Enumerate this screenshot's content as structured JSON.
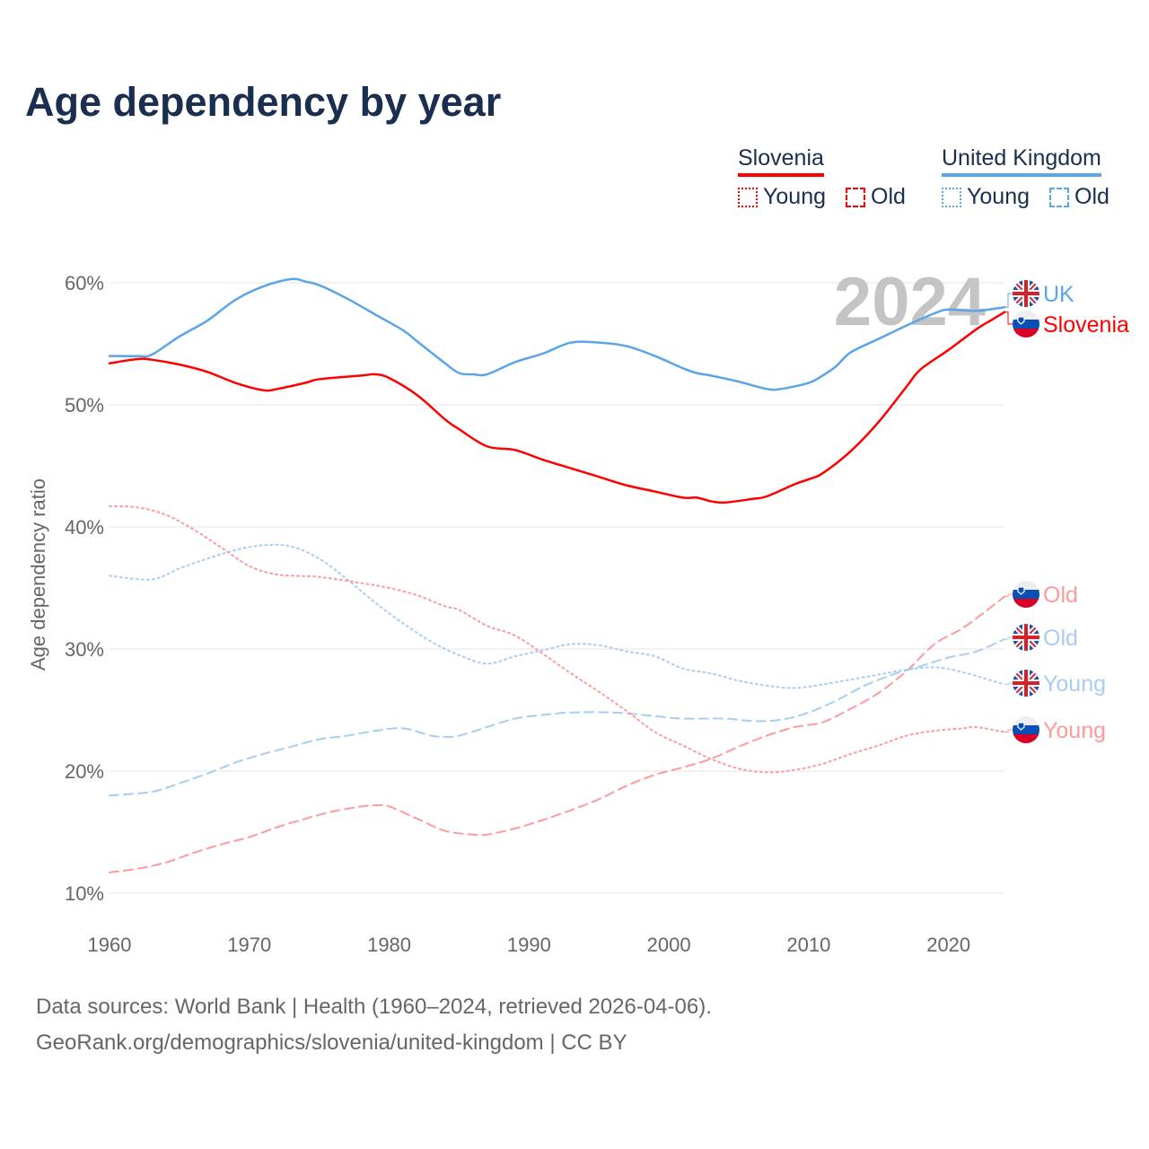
{
  "title": "Age dependency by year",
  "legend": {
    "groups": [
      {
        "name": "Slovenia",
        "color": "#ff0000",
        "items": [
          {
            "label": "Young",
            "style": "dotted"
          },
          {
            "label": "Old",
            "style": "dashed"
          }
        ]
      },
      {
        "name": "United Kingdom",
        "color": "#5aa5e8",
        "items": [
          {
            "label": "Young",
            "style": "dotted"
          },
          {
            "label": "Old",
            "style": "dashed"
          }
        ]
      }
    ]
  },
  "year_watermark": "2024",
  "footer": {
    "line1": "Data sources: World Bank | Health (1960–2024, retrieved 2026-04-06).",
    "line2": "GeoRank.org/demographics/slovenia/united-kingdom | CC BY"
  },
  "chart_data": {
    "type": "line",
    "title": "Age dependency by year",
    "xlabel": "",
    "ylabel": "Age dependency ratio",
    "xlim": [
      1960,
      2024
    ],
    "ylim": [
      10,
      60
    ],
    "x_ticks": [
      "1960",
      "1970",
      "1980",
      "1990",
      "2000",
      "2010",
      "2020"
    ],
    "y_ticks": [
      "10%",
      "20%",
      "30%",
      "40%",
      "50%",
      "60%"
    ],
    "grid": true,
    "series": [
      {
        "name": "UK",
        "country": "United Kingdom",
        "flag": "uk",
        "style": "solid",
        "color": "#5aa5e8",
        "points": [
          [
            1960,
            54.0
          ],
          [
            1962,
            54.0
          ],
          [
            1963,
            54.1
          ],
          [
            1965,
            55.6
          ],
          [
            1967,
            56.9
          ],
          [
            1969,
            58.6
          ],
          [
            1971,
            59.7
          ],
          [
            1973,
            60.3
          ],
          [
            1974,
            60.1
          ],
          [
            1975,
            59.8
          ],
          [
            1977,
            58.7
          ],
          [
            1979,
            57.4
          ],
          [
            1981,
            56.1
          ],
          [
            1982,
            55.2
          ],
          [
            1984,
            53.4
          ],
          [
            1985,
            52.6
          ],
          [
            1986,
            52.5
          ],
          [
            1987,
            52.5
          ],
          [
            1989,
            53.5
          ],
          [
            1991,
            54.2
          ],
          [
            1993,
            55.1
          ],
          [
            1995,
            55.1
          ],
          [
            1997,
            54.8
          ],
          [
            1999,
            54.0
          ],
          [
            2001,
            53.0
          ],
          [
            2002,
            52.6
          ],
          [
            2003,
            52.4
          ],
          [
            2005,
            51.9
          ],
          [
            2007,
            51.3
          ],
          [
            2008,
            51.3
          ],
          [
            2010,
            51.8
          ],
          [
            2011,
            52.4
          ],
          [
            2012,
            53.2
          ],
          [
            2013,
            54.3
          ],
          [
            2015,
            55.4
          ],
          [
            2017,
            56.5
          ],
          [
            2019,
            57.5
          ],
          [
            2020,
            57.8
          ],
          [
            2022,
            57.7
          ],
          [
            2024,
            58.0
          ]
        ]
      },
      {
        "name": "Slovenia",
        "country": "Slovenia",
        "flag": "si",
        "style": "solid",
        "color": "#ff0000",
        "points": [
          [
            1960,
            53.4
          ],
          [
            1962,
            53.75
          ],
          [
            1963,
            53.7
          ],
          [
            1965,
            53.3
          ],
          [
            1967,
            52.7
          ],
          [
            1969,
            51.8
          ],
          [
            1971,
            51.2
          ],
          [
            1972,
            51.3
          ],
          [
            1974,
            51.8
          ],
          [
            1975,
            52.1
          ],
          [
            1978,
            52.4
          ],
          [
            1979,
            52.5
          ],
          [
            1980,
            52.2
          ],
          [
            1982,
            50.8
          ],
          [
            1984,
            48.8
          ],
          [
            1985,
            48.0
          ],
          [
            1987,
            46.6
          ],
          [
            1989,
            46.3
          ],
          [
            1991,
            45.5
          ],
          [
            1993,
            44.8
          ],
          [
            1995,
            44.1
          ],
          [
            1997,
            43.4
          ],
          [
            1999,
            42.9
          ],
          [
            2001,
            42.4
          ],
          [
            2002,
            42.4
          ],
          [
            2003,
            42.1
          ],
          [
            2004,
            42.0
          ],
          [
            2006,
            42.3
          ],
          [
            2007,
            42.5
          ],
          [
            2009,
            43.5
          ],
          [
            2010,
            43.9
          ],
          [
            2011,
            44.4
          ],
          [
            2013,
            46.2
          ],
          [
            2015,
            48.6
          ],
          [
            2017,
            51.5
          ],
          [
            2018,
            52.9
          ],
          [
            2020,
            54.5
          ],
          [
            2022,
            56.2
          ],
          [
            2023,
            56.9
          ],
          [
            2024,
            57.6
          ]
        ]
      },
      {
        "name": "Old",
        "country": "Slovenia",
        "flag": "si",
        "style": "dashed",
        "color": "#ff9a9a",
        "points": [
          [
            1960,
            11.7
          ],
          [
            1962,
            12.0
          ],
          [
            1964,
            12.5
          ],
          [
            1966,
            13.3
          ],
          [
            1968,
            14.0
          ],
          [
            1970,
            14.6
          ],
          [
            1972,
            15.4
          ],
          [
            1974,
            16.1
          ],
          [
            1976,
            16.7
          ],
          [
            1978,
            17.1
          ],
          [
            1979,
            17.2
          ],
          [
            1980,
            17.1
          ],
          [
            1982,
            16.1
          ],
          [
            1984,
            15.1
          ],
          [
            1986,
            14.8
          ],
          [
            1987,
            14.8
          ],
          [
            1989,
            15.3
          ],
          [
            1991,
            16.0
          ],
          [
            1993,
            16.8
          ],
          [
            1995,
            17.7
          ],
          [
            1997,
            18.8
          ],
          [
            1999,
            19.7
          ],
          [
            2001,
            20.3
          ],
          [
            2003,
            21.0
          ],
          [
            2005,
            22.0
          ],
          [
            2007,
            22.9
          ],
          [
            2009,
            23.6
          ],
          [
            2011,
            24.0
          ],
          [
            2013,
            25.1
          ],
          [
            2015,
            26.4
          ],
          [
            2017,
            28.2
          ],
          [
            2019,
            30.4
          ],
          [
            2021,
            31.7
          ],
          [
            2023,
            33.4
          ],
          [
            2024,
            34.3
          ]
        ]
      },
      {
        "name": "Old",
        "country": "United Kingdom",
        "flag": "uk",
        "style": "dashed",
        "color": "#a8cdf2",
        "points": [
          [
            1960,
            18.0
          ],
          [
            1963,
            18.3
          ],
          [
            1965,
            19.0
          ],
          [
            1967,
            19.8
          ],
          [
            1969,
            20.7
          ],
          [
            1971,
            21.4
          ],
          [
            1973,
            22.0
          ],
          [
            1975,
            22.6
          ],
          [
            1977,
            22.9
          ],
          [
            1979,
            23.3
          ],
          [
            1981,
            23.5
          ],
          [
            1983,
            22.9
          ],
          [
            1984,
            22.8
          ],
          [
            1985,
            22.9
          ],
          [
            1987,
            23.6
          ],
          [
            1989,
            24.3
          ],
          [
            1991,
            24.6
          ],
          [
            1993,
            24.8
          ],
          [
            1996,
            24.8
          ],
          [
            1999,
            24.5
          ],
          [
            2001,
            24.3
          ],
          [
            2004,
            24.3
          ],
          [
            2006,
            24.1
          ],
          [
            2008,
            24.2
          ],
          [
            2010,
            24.8
          ],
          [
            2012,
            25.8
          ],
          [
            2014,
            27.0
          ],
          [
            2016,
            27.9
          ],
          [
            2018,
            28.6
          ],
          [
            2020,
            29.3
          ],
          [
            2022,
            29.8
          ],
          [
            2024,
            30.8
          ]
        ]
      },
      {
        "name": "Young",
        "country": "United Kingdom",
        "flag": "uk",
        "style": "dotted",
        "color": "#a8cdf2",
        "points": [
          [
            1960,
            36.0
          ],
          [
            1963,
            35.7
          ],
          [
            1965,
            36.6
          ],
          [
            1967,
            37.4
          ],
          [
            1969,
            38.1
          ],
          [
            1971,
            38.5
          ],
          [
            1973,
            38.4
          ],
          [
            1975,
            37.4
          ],
          [
            1977,
            35.7
          ],
          [
            1979,
            33.8
          ],
          [
            1981,
            32.1
          ],
          [
            1983,
            30.6
          ],
          [
            1985,
            29.5
          ],
          [
            1987,
            28.8
          ],
          [
            1989,
            29.4
          ],
          [
            1991,
            29.9
          ],
          [
            1993,
            30.4
          ],
          [
            1995,
            30.3
          ],
          [
            1997,
            29.8
          ],
          [
            1999,
            29.4
          ],
          [
            2001,
            28.4
          ],
          [
            2003,
            28.0
          ],
          [
            2005,
            27.4
          ],
          [
            2007,
            27.0
          ],
          [
            2009,
            26.8
          ],
          [
            2011,
            27.1
          ],
          [
            2013,
            27.5
          ],
          [
            2015,
            27.9
          ],
          [
            2017,
            28.3
          ],
          [
            2019,
            28.5
          ],
          [
            2021,
            28.1
          ],
          [
            2024,
            27.1
          ]
        ]
      },
      {
        "name": "Young",
        "country": "Slovenia",
        "flag": "si",
        "style": "dotted",
        "color": "#ff9a9a",
        "points": [
          [
            1960,
            41.7
          ],
          [
            1962,
            41.6
          ],
          [
            1964,
            41.0
          ],
          [
            1966,
            39.8
          ],
          [
            1968,
            38.3
          ],
          [
            1970,
            36.8
          ],
          [
            1972,
            36.1
          ],
          [
            1975,
            35.9
          ],
          [
            1978,
            35.4
          ],
          [
            1980,
            35.0
          ],
          [
            1982,
            34.4
          ],
          [
            1984,
            33.5
          ],
          [
            1985,
            33.2
          ],
          [
            1987,
            31.9
          ],
          [
            1989,
            31.1
          ],
          [
            1991,
            29.6
          ],
          [
            1993,
            28.0
          ],
          [
            1995,
            26.5
          ],
          [
            1997,
            24.9
          ],
          [
            1999,
            23.2
          ],
          [
            2001,
            22.1
          ],
          [
            2003,
            21.0
          ],
          [
            2005,
            20.2
          ],
          [
            2007,
            19.9
          ],
          [
            2009,
            20.1
          ],
          [
            2011,
            20.6
          ],
          [
            2013,
            21.4
          ],
          [
            2015,
            22.1
          ],
          [
            2017,
            22.9
          ],
          [
            2019,
            23.3
          ],
          [
            2021,
            23.5
          ],
          [
            2022,
            23.6
          ],
          [
            2024,
            23.2
          ]
        ]
      }
    ]
  }
}
